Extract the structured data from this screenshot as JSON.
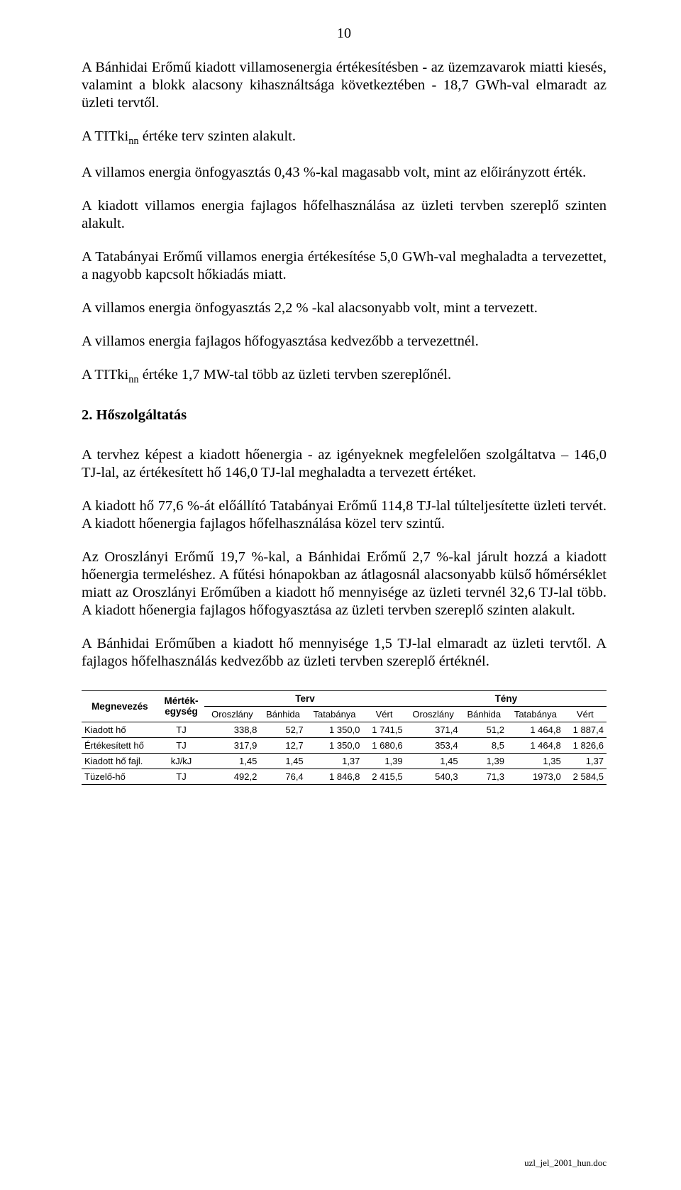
{
  "page_number": "10",
  "para1": "A Bánhidai Erőmű kiadott villamosenergia értékesítésben - az üzemzavarok miatti kiesés, valamint a blokk alacsony kihasználtsága  következtében - 18,7 GWh-val elmaradt az üzleti  tervtől.",
  "para2_pre": "A TITki",
  "para2_sub": "nn",
  "para2_post": " értéke terv szinten alakult.",
  "para3": "A villamos energia önfogyasztás 0,43 %-kal  magasabb volt, mint az előirányzott érték.",
  "para4": "A kiadott villamos energia fajlagos hőfelhasználása az üzleti tervben szereplő szinten alakult.",
  "para5": "A Tatabányai Erőmű villamos energia értékesítése 5,0 GWh-val meghaladta a tervezettet, a nagyobb kapcsolt hőkiadás miatt.",
  "para6": "A villamos energia önfogyasztás 2,2 % -kal alacsonyabb volt, mint a tervezett.",
  "para7": "A villamos energia fajlagos hőfogyasztása kedvezőbb a tervezettnél.",
  "para8_pre": "A TITki",
  "para8_sub": "nn",
  "para8_post": " értéke 1,7 MW-tal több az üzleti tervben szereplőnél.",
  "section2_title": "2. Hőszolgáltatás",
  "para9": "A tervhez képest a kiadott hőenergia - az igényeknek megfelelően szolgáltatva – 146,0 TJ-lal, az értékesített hő 146,0 TJ-lal meghaladta a tervezett értéket.",
  "para10": "A kiadott hő 77,6 %-át előállító Tatabányai Erőmű 114,8 TJ-lal túlteljesítette üzleti tervét.  A kiadott hőenergia fajlagos hőfelhasználása közel terv szintű.",
  "para11": "Az Oroszlányi Erőmű 19,7 %-kal, a Bánhidai Erőmű 2,7 %-kal járult hozzá a kiadott hőenergia termeléshez. A fűtési hónapokban az átlagosnál alacsonyabb külső hőmérséklet miatt az Oroszlányi Erőműben a kiadott hő mennyisége az üzleti tervnél 32,6 TJ-lal több.  A kiadott hőenergia fajlagos hőfogyasztása az üzleti tervben szereplő szinten alakult.",
  "para12": "A Bánhidai Erőműben a kiadott hő mennyisége 1,5 TJ-lal elmaradt az üzleti tervtől. A fajlagos hőfelhasználás kedvezőbb az üzleti tervben szereplő értéknél.",
  "table": {
    "head": {
      "c0": "Megnevezés",
      "c1": "Mérték-\negység",
      "gTerv": "Terv",
      "gTeny": "Tény",
      "sub": [
        "Oroszlány",
        "Bánhida",
        "Tatabánya",
        "Vért",
        "Oroszlány",
        "Bánhida",
        "Tatabánya",
        "Vért"
      ]
    },
    "rows": [
      {
        "label": "Kiadott hő",
        "unit": "TJ",
        "v": [
          "338,8",
          "52,7",
          "1 350,0",
          "1 741,5",
          "371,4",
          "51,2",
          "1 464,8",
          "1 887,4"
        ]
      },
      {
        "label": "Értékesített hő",
        "unit": "TJ",
        "v": [
          "317,9",
          "12,7",
          "1 350,0",
          "1 680,6",
          "353,4",
          "8,5",
          "1 464,8",
          "1 826,6"
        ]
      },
      {
        "label": "Kiadott hő fajl.",
        "unit": "kJ/kJ",
        "v": [
          "1,45",
          "1,45",
          "1,37",
          "1,39",
          "1,45",
          "1,39",
          "1,35",
          "1,37"
        ]
      },
      {
        "label": "Tüzelő-hő",
        "unit": "TJ",
        "v": [
          "492,2",
          "76,4",
          "1 846,8",
          "2 415,5",
          "540,3",
          "71,3",
          "1973,0",
          "2 584,5"
        ]
      }
    ]
  },
  "footer": "uzl_jel_2001_hun.doc"
}
